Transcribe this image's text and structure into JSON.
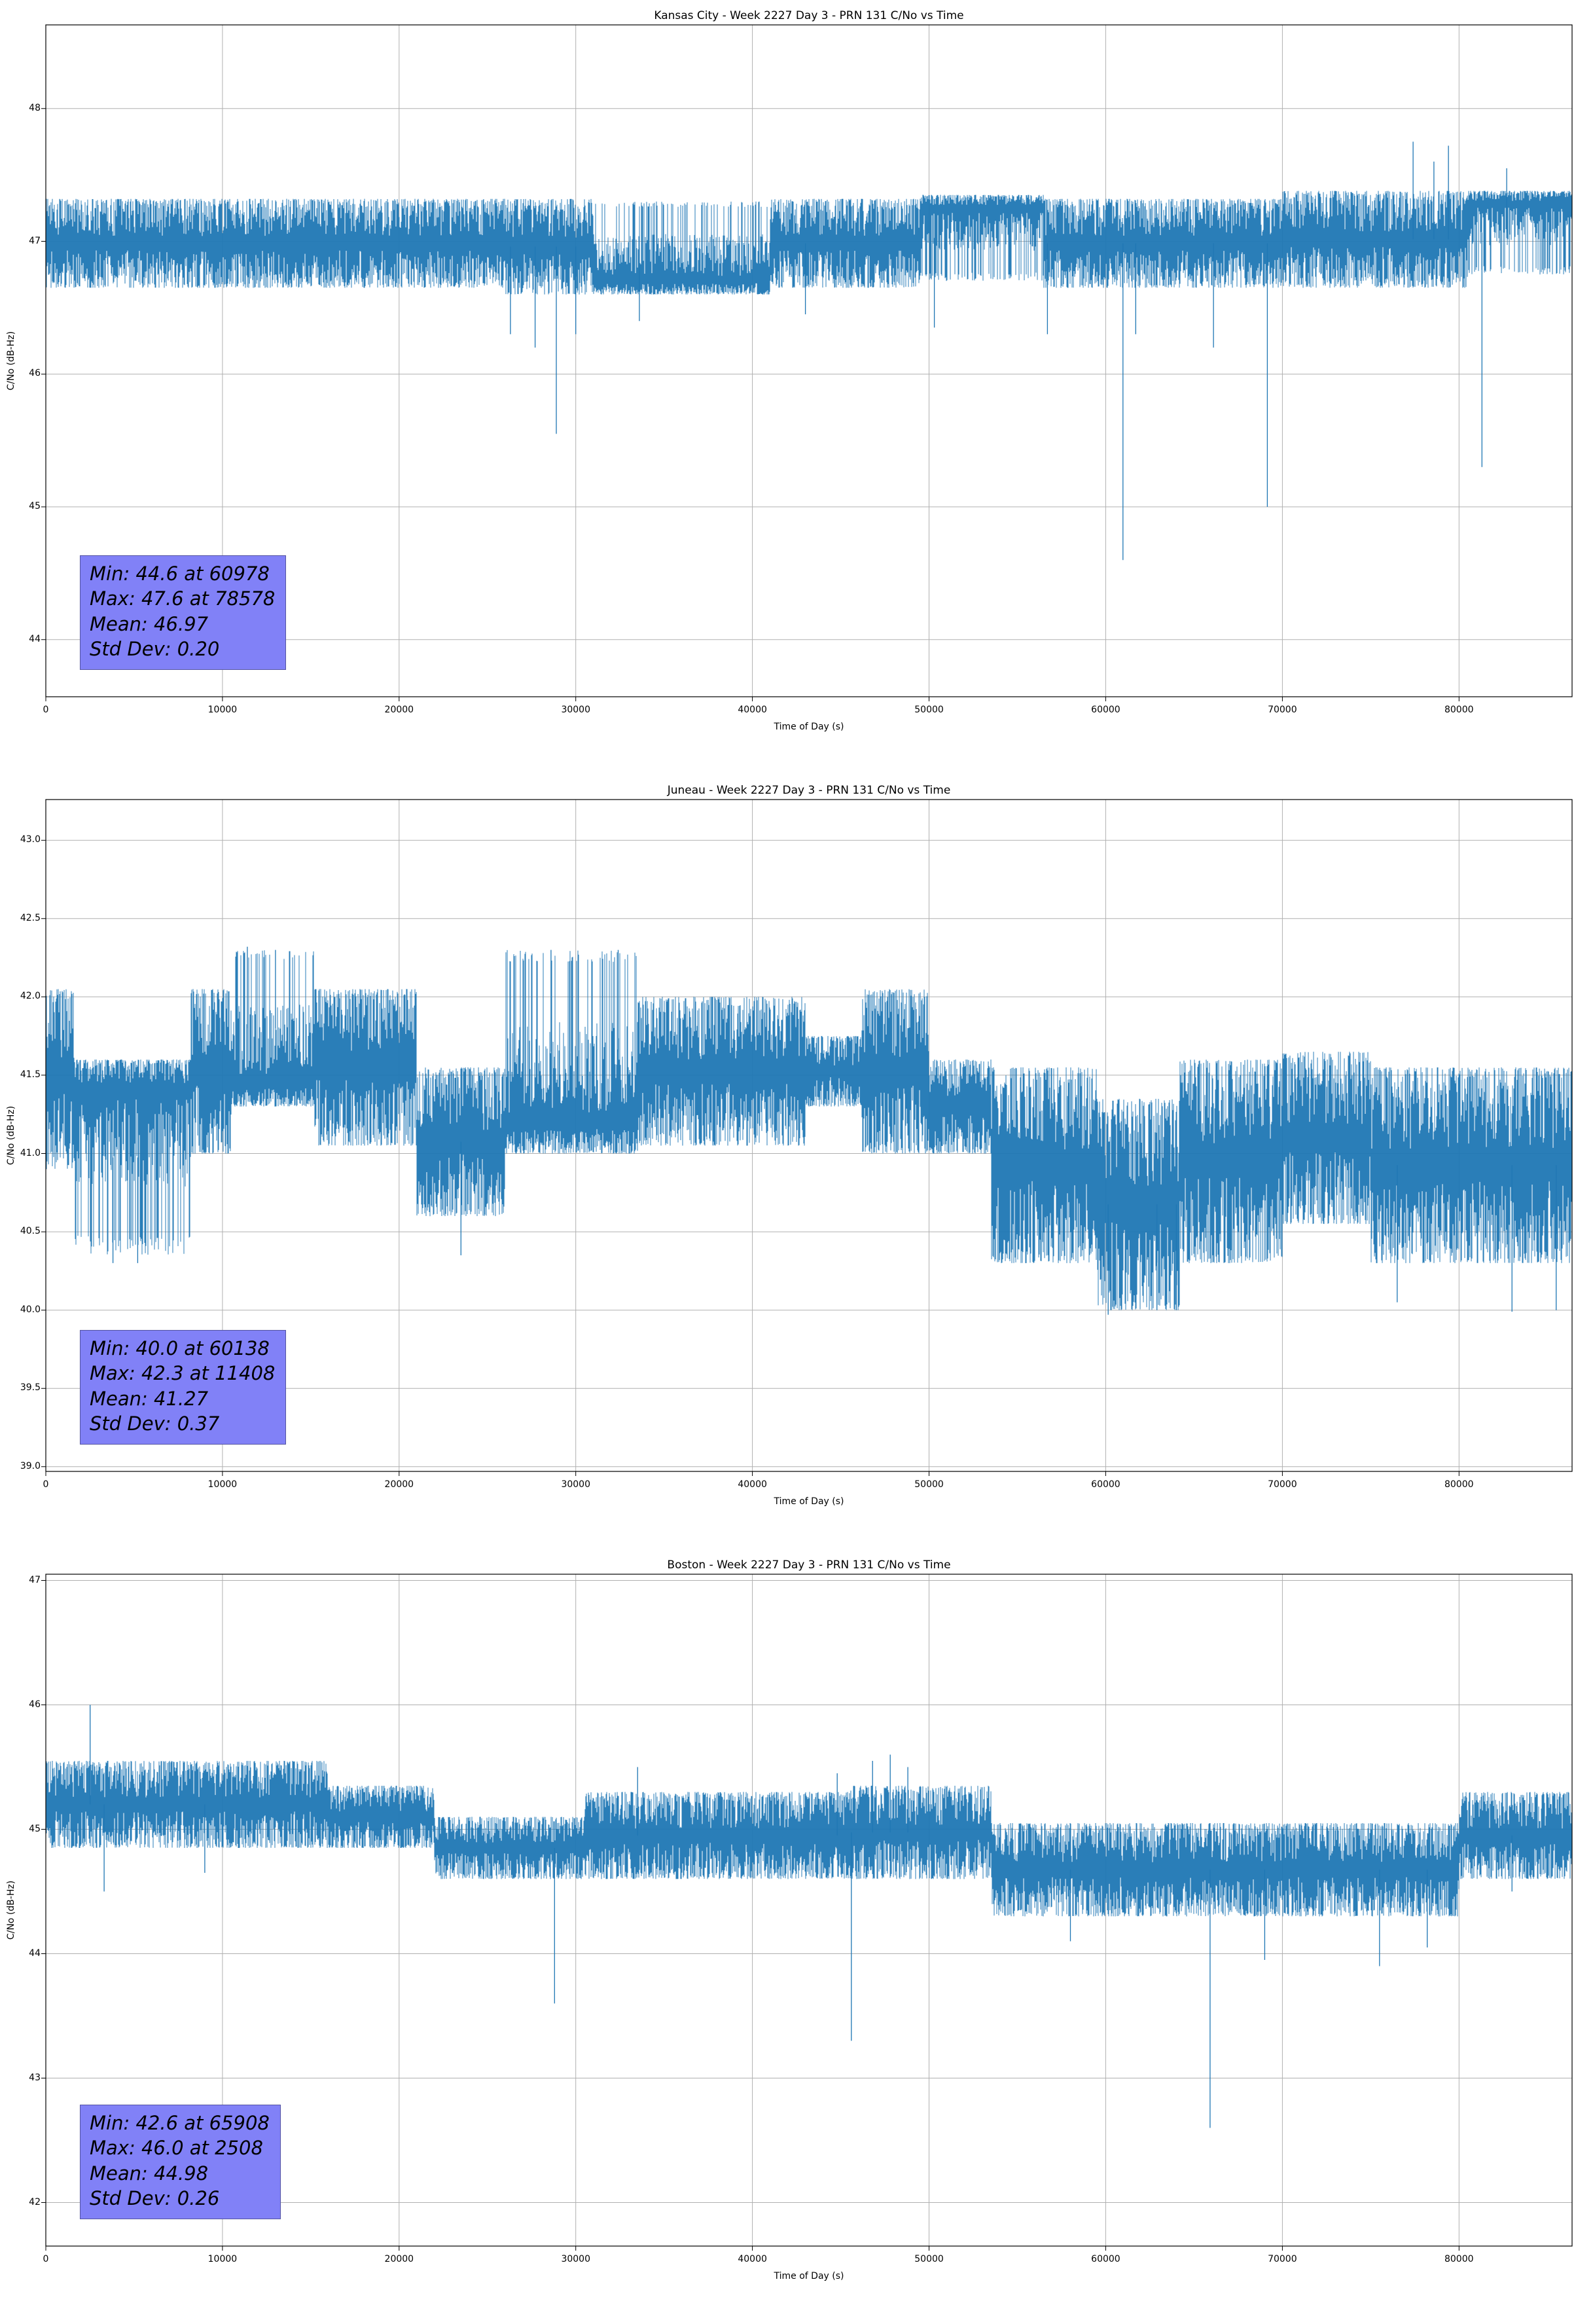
{
  "page": {
    "background": "#ffffff"
  },
  "charts": [
    {
      "stats_lines": [
        "Min: 44.6 at 60978",
        "Max: 47.6 at 78578",
        "Mean: 46.97",
        "Std Dev: 0.20"
      ],
      "stats_box_color": "#8181f7",
      "chart_data": {
        "type": "line",
        "title": "Kansas City - Week 2227 Day 3 - PRN 131 C/No vs Time",
        "xlabel": "Time of Day (s)",
        "ylabel": "C/No (dB-Hz)",
        "series_name": "PRN 131 C/No",
        "line_color": "#1f77b4",
        "grid": true,
        "xlim": [
          0,
          86400
        ],
        "ylim": [
          43.57,
          48.63
        ],
        "xticks": [
          0,
          10000,
          20000,
          30000,
          40000,
          50000,
          60000,
          70000,
          80000
        ],
        "xtick_labels": [
          "0",
          "10000",
          "20000",
          "30000",
          "40000",
          "50000",
          "60000",
          "70000",
          "80000"
        ],
        "yticks": [
          44,
          45,
          46,
          47,
          48
        ],
        "ytick_labels": [
          "44",
          "45",
          "46",
          "47",
          "48"
        ],
        "stats": {
          "min": 44.6,
          "min_time_s": 60978,
          "max": 47.6,
          "max_time_s": 78578,
          "mean": 46.97,
          "std_dev": 0.2
        },
        "band_segments": [
          {
            "x0": 0,
            "x1": 26000,
            "low": 46.65,
            "high": 47.32,
            "bias": "full"
          },
          {
            "x0": 26000,
            "x1": 31000,
            "low": 46.6,
            "high": 47.32,
            "bias": "full"
          },
          {
            "x0": 31000,
            "x1": 41000,
            "low": 46.6,
            "high": 47.3,
            "bias": "bottom"
          },
          {
            "x0": 41000,
            "x1": 49500,
            "low": 46.65,
            "high": 47.32,
            "bias": "full"
          },
          {
            "x0": 49500,
            "x1": 56500,
            "low": 46.7,
            "high": 47.35,
            "bias": "top"
          },
          {
            "x0": 56500,
            "x1": 70000,
            "low": 46.65,
            "high": 47.32,
            "bias": "full"
          },
          {
            "x0": 70000,
            "x1": 80500,
            "low": 46.65,
            "high": 47.38,
            "bias": "full"
          },
          {
            "x0": 80500,
            "x1": 86400,
            "low": 46.75,
            "high": 47.38,
            "bias": "top"
          }
        ],
        "spikes": [
          {
            "x": 26300,
            "y": 46.3
          },
          {
            "x": 27700,
            "y": 46.2
          },
          {
            "x": 28900,
            "y": 45.55
          },
          {
            "x": 30000,
            "y": 46.3
          },
          {
            "x": 33600,
            "y": 46.4
          },
          {
            "x": 43000,
            "y": 46.45
          },
          {
            "x": 50300,
            "y": 46.35
          },
          {
            "x": 56700,
            "y": 46.3
          },
          {
            "x": 60978,
            "y": 44.6
          },
          {
            "x": 61700,
            "y": 46.3
          },
          {
            "x": 66100,
            "y": 46.2
          },
          {
            "x": 69150,
            "y": 45.0
          },
          {
            "x": 77400,
            "y": 47.75
          },
          {
            "x": 78578,
            "y": 47.6
          },
          {
            "x": 79400,
            "y": 47.72
          },
          {
            "x": 81300,
            "y": 45.3
          },
          {
            "x": 82700,
            "y": 47.55
          }
        ]
      }
    },
    {
      "stats_lines": [
        "Min: 40.0 at 60138",
        "Max: 42.3 at 11408",
        "Mean: 41.27",
        "Std Dev: 0.37"
      ],
      "stats_box_color": "#8181f7",
      "chart_data": {
        "type": "line",
        "title": "Juneau - Week 2227 Day 3 - PRN 131 C/No vs Time",
        "xlabel": "Time of Day (s)",
        "ylabel": "C/No (dB-Hz)",
        "series_name": "PRN 131 C/No",
        "line_color": "#1f77b4",
        "grid": true,
        "xlim": [
          0,
          86400
        ],
        "ylim": [
          38.97,
          43.26
        ],
        "xticks": [
          0,
          10000,
          20000,
          30000,
          40000,
          50000,
          60000,
          70000,
          80000
        ],
        "xtick_labels": [
          "0",
          "10000",
          "20000",
          "30000",
          "40000",
          "50000",
          "60000",
          "70000",
          "80000"
        ],
        "yticks": [
          39.0,
          39.5,
          40.0,
          40.5,
          41.0,
          41.5,
          42.0,
          42.5,
          43.0
        ],
        "ytick_labels": [
          "39.0",
          "39.5",
          "40.0",
          "40.5",
          "41.0",
          "41.5",
          "42.0",
          "42.5",
          "43.0"
        ],
        "stats": {
          "min": 40.0,
          "min_time_s": 60138,
          "max": 42.3,
          "max_time_s": 11408,
          "mean": 41.27,
          "std_dev": 0.37
        },
        "band_segments": [
          {
            "x0": 0,
            "x1": 1600,
            "low": 40.9,
            "high": 42.05,
            "bias": "full"
          },
          {
            "x0": 1600,
            "x1": 8200,
            "low": 40.35,
            "high": 41.6,
            "bias": "top"
          },
          {
            "x0": 8200,
            "x1": 10500,
            "low": 41.0,
            "high": 42.05,
            "bias": "full"
          },
          {
            "x0": 10500,
            "x1": 15200,
            "low": 41.3,
            "high": 42.3,
            "bias": "bottom"
          },
          {
            "x0": 15200,
            "x1": 21000,
            "low": 41.05,
            "high": 42.05,
            "bias": "full"
          },
          {
            "x0": 21000,
            "x1": 26000,
            "low": 40.6,
            "high": 41.55,
            "bias": "full"
          },
          {
            "x0": 26000,
            "x1": 33500,
            "low": 41.0,
            "high": 42.3,
            "bias": "bottom"
          },
          {
            "x0": 33500,
            "x1": 43000,
            "low": 41.05,
            "high": 42.0,
            "bias": "full"
          },
          {
            "x0": 43000,
            "x1": 46200,
            "low": 41.3,
            "high": 41.75,
            "bias": "full"
          },
          {
            "x0": 46200,
            "x1": 50000,
            "low": 41.0,
            "high": 42.05,
            "bias": "full"
          },
          {
            "x0": 50000,
            "x1": 53500,
            "low": 41.0,
            "high": 41.6,
            "bias": "full"
          },
          {
            "x0": 53500,
            "x1": 59500,
            "low": 40.3,
            "high": 41.55,
            "bias": "full"
          },
          {
            "x0": 59500,
            "x1": 64200,
            "low": 40.0,
            "high": 41.35,
            "bias": "full"
          },
          {
            "x0": 64200,
            "x1": 70000,
            "low": 40.3,
            "high": 41.6,
            "bias": "full"
          },
          {
            "x0": 70000,
            "x1": 75000,
            "low": 40.55,
            "high": 41.65,
            "bias": "full"
          },
          {
            "x0": 75000,
            "x1": 86400,
            "low": 40.3,
            "high": 41.55,
            "bias": "full"
          }
        ],
        "spikes": [
          {
            "x": 3800,
            "y": 40.3
          },
          {
            "x": 5200,
            "y": 40.3
          },
          {
            "x": 11408,
            "y": 42.32
          },
          {
            "x": 13000,
            "y": 42.3
          },
          {
            "x": 23500,
            "y": 40.35
          },
          {
            "x": 28600,
            "y": 42.3
          },
          {
            "x": 32400,
            "y": 42.3
          },
          {
            "x": 60138,
            "y": 39.97
          },
          {
            "x": 62900,
            "y": 40.0
          },
          {
            "x": 64000,
            "y": 40.0
          },
          {
            "x": 76500,
            "y": 40.05
          },
          {
            "x": 83000,
            "y": 39.99
          },
          {
            "x": 85500,
            "y": 40.0
          }
        ]
      }
    },
    {
      "stats_lines": [
        "Min: 42.6 at 65908",
        "Max: 46.0 at 2508",
        "Mean: 44.98",
        "Std Dev: 0.26"
      ],
      "stats_box_color": "#8181f7",
      "chart_data": {
        "type": "line",
        "title": "Boston - Week 2227 Day 3 - PRN 131 C/No vs Time",
        "xlabel": "Time of Day (s)",
        "ylabel": "C/No (dB-Hz)",
        "series_name": "PRN 131 C/No",
        "line_color": "#1f77b4",
        "grid": true,
        "xlim": [
          0,
          86400
        ],
        "ylim": [
          41.65,
          47.05
        ],
        "xticks": [
          0,
          10000,
          20000,
          30000,
          40000,
          50000,
          60000,
          70000,
          80000
        ],
        "xtick_labels": [
          "0",
          "10000",
          "20000",
          "30000",
          "40000",
          "50000",
          "60000",
          "70000",
          "80000"
        ],
        "yticks": [
          42,
          43,
          44,
          45,
          46,
          47
        ],
        "ytick_labels": [
          "42",
          "43",
          "44",
          "45",
          "46",
          "47"
        ],
        "stats": {
          "min": 42.6,
          "min_time_s": 65908,
          "max": 46.0,
          "max_time_s": 2508,
          "mean": 44.98,
          "std_dev": 0.26
        },
        "band_segments": [
          {
            "x0": 0,
            "x1": 16000,
            "low": 44.85,
            "high": 45.55,
            "bias": "full"
          },
          {
            "x0": 16000,
            "x1": 22000,
            "low": 44.85,
            "high": 45.35,
            "bias": "full"
          },
          {
            "x0": 22000,
            "x1": 30500,
            "low": 44.6,
            "high": 45.1,
            "bias": "full"
          },
          {
            "x0": 30500,
            "x1": 45500,
            "low": 44.6,
            "high": 45.3,
            "bias": "full"
          },
          {
            "x0": 45500,
            "x1": 53500,
            "low": 44.6,
            "high": 45.35,
            "bias": "full"
          },
          {
            "x0": 53500,
            "x1": 80000,
            "low": 44.3,
            "high": 45.05,
            "bias": "full"
          },
          {
            "x0": 80000,
            "x1": 86400,
            "low": 44.6,
            "high": 45.3,
            "bias": "full"
          }
        ],
        "spikes": [
          {
            "x": 2508,
            "y": 46.0
          },
          {
            "x": 3300,
            "y": 44.5
          },
          {
            "x": 9000,
            "y": 44.65
          },
          {
            "x": 28800,
            "y": 43.6
          },
          {
            "x": 33500,
            "y": 45.5
          },
          {
            "x": 44800,
            "y": 45.45
          },
          {
            "x": 45600,
            "y": 43.3
          },
          {
            "x": 46800,
            "y": 45.55
          },
          {
            "x": 47800,
            "y": 45.6
          },
          {
            "x": 48800,
            "y": 45.5
          },
          {
            "x": 58000,
            "y": 44.1
          },
          {
            "x": 65908,
            "y": 42.6
          },
          {
            "x": 69000,
            "y": 43.95
          },
          {
            "x": 75500,
            "y": 43.9
          },
          {
            "x": 78200,
            "y": 44.05
          },
          {
            "x": 83000,
            "y": 44.5
          }
        ]
      }
    }
  ]
}
